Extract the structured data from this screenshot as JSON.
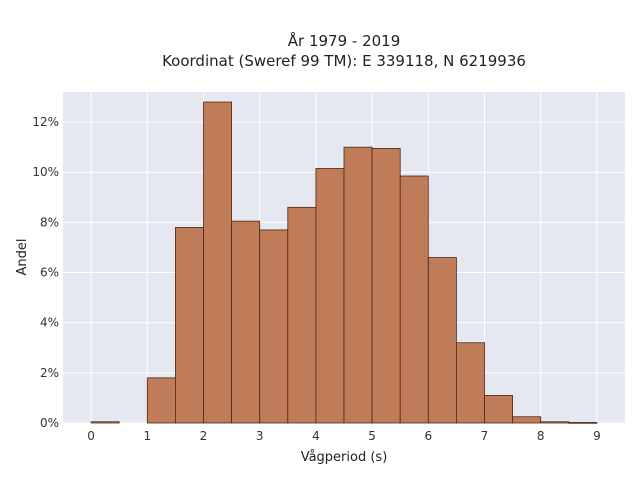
{
  "chart_data": {
    "type": "bar",
    "title_line1": "År 1979 - 2019",
    "title_line2": "Koordinat (Sweref 99 TM): E 339118, N 6219936",
    "xlabel": "Vågperiod (s)",
    "ylabel": "Andel",
    "xlim": [
      -0.5,
      9.5
    ],
    "ylim": [
      0,
      13.2
    ],
    "x_ticks": [
      0,
      1,
      2,
      3,
      4,
      5,
      6,
      7,
      8,
      9
    ],
    "x_tick_labels": [
      "0",
      "1",
      "2",
      "3",
      "4",
      "5",
      "6",
      "7",
      "8",
      "9"
    ],
    "y_ticks": [
      0,
      2,
      4,
      6,
      8,
      10,
      12
    ],
    "y_tick_labels": [
      "0%",
      "2%",
      "4%",
      "6%",
      "8%",
      "10%",
      "12%"
    ],
    "bin_width": 0.5,
    "bins": [
      {
        "start": 0.0,
        "value": 0.05
      },
      {
        "start": 0.5,
        "value": 0.0
      },
      {
        "start": 1.0,
        "value": 1.8
      },
      {
        "start": 1.5,
        "value": 7.8
      },
      {
        "start": 2.0,
        "value": 12.8
      },
      {
        "start": 2.5,
        "value": 8.05
      },
      {
        "start": 3.0,
        "value": 7.7
      },
      {
        "start": 3.5,
        "value": 8.6
      },
      {
        "start": 4.0,
        "value": 10.15
      },
      {
        "start": 4.5,
        "value": 11.0
      },
      {
        "start": 5.0,
        "value": 10.95
      },
      {
        "start": 5.5,
        "value": 9.85
      },
      {
        "start": 6.0,
        "value": 6.6
      },
      {
        "start": 6.5,
        "value": 3.2
      },
      {
        "start": 7.0,
        "value": 1.1
      },
      {
        "start": 7.5,
        "value": 0.25
      },
      {
        "start": 8.0,
        "value": 0.05
      },
      {
        "start": 8.5,
        "value": 0.02
      }
    ],
    "grid": true,
    "colors": {
      "bar_fill": "#c07c58",
      "bar_edge": "#4a2a18",
      "plot_background": "#e5e8f0",
      "grid": "#ffffff"
    }
  }
}
